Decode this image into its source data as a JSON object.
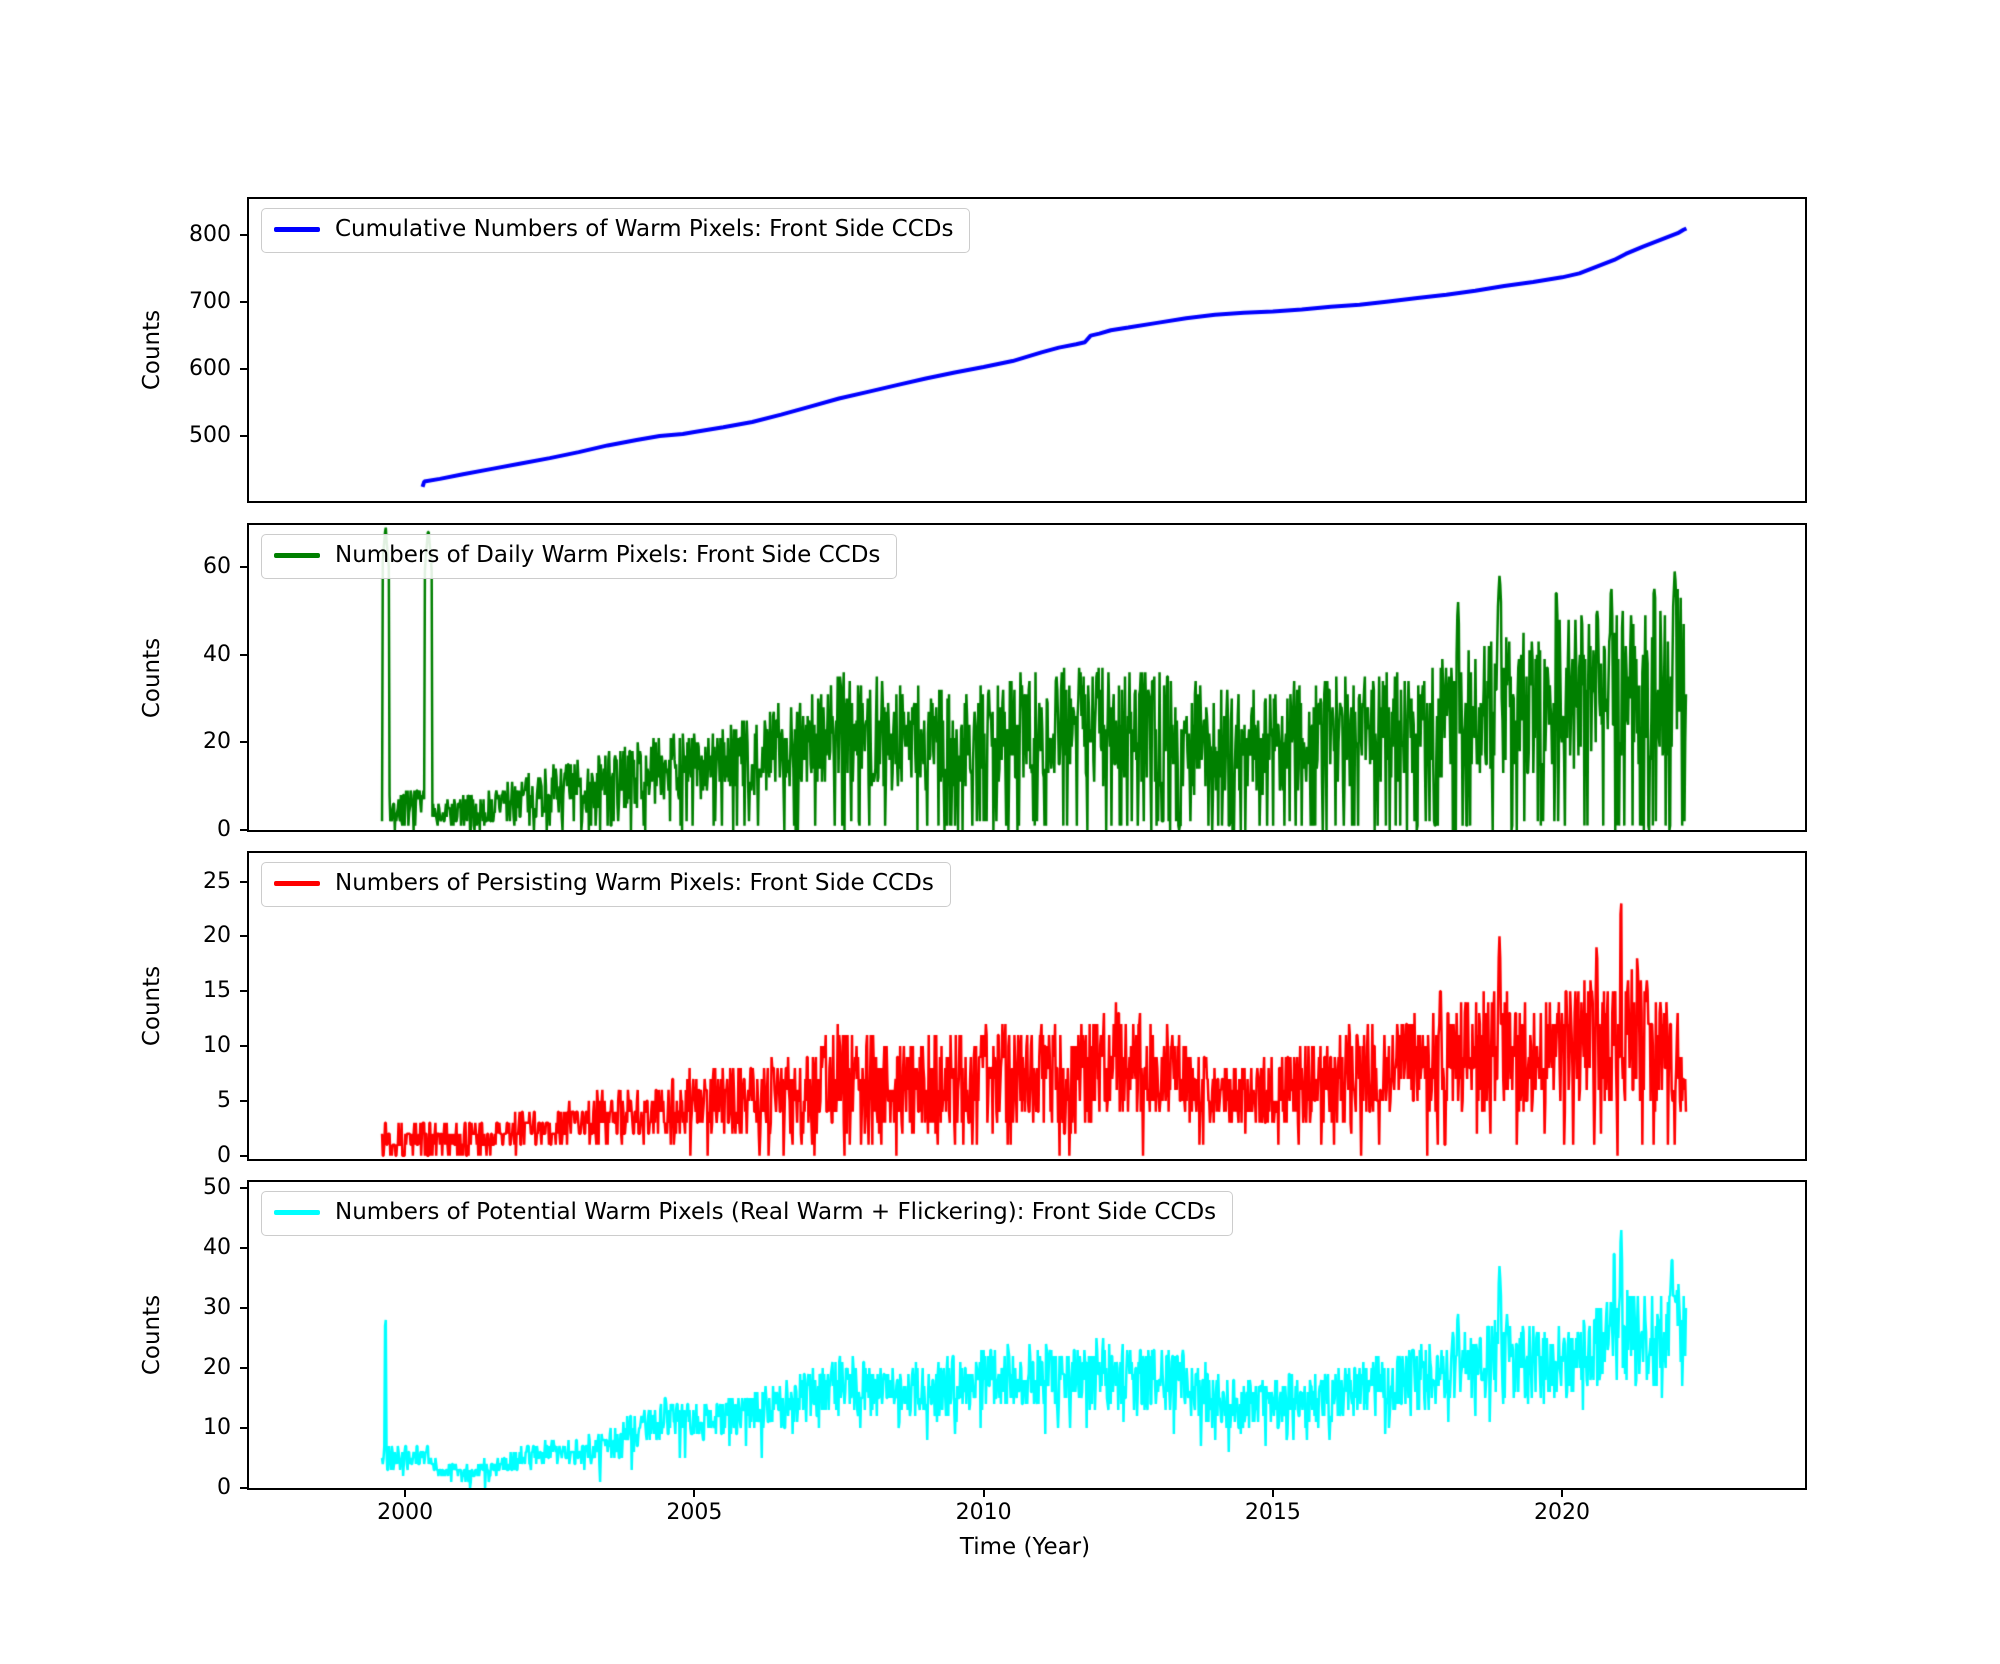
{
  "figure": {
    "background": "#ffffff"
  },
  "axis": {
    "xlabel": "Time (Year)",
    "xlim": [
      1997.3,
      2024.2
    ],
    "xticks": [
      2000,
      2005,
      2010,
      2015,
      2020
    ]
  },
  "chart_data": [
    {
      "type": "line",
      "legend": "Cumulative Numbers of Warm Pixels: Front Side CCDs",
      "legend_position": "upper left",
      "ylabel": "Counts",
      "color": "#0000ff",
      "linewidth": 4,
      "grid": false,
      "ylim": [
        403,
        854
      ],
      "yticks": [
        500,
        600,
        700,
        800
      ],
      "points": [
        [
          2000.3,
          424
        ],
        [
          2000.33,
          432
        ],
        [
          2000.6,
          436
        ],
        [
          2001.0,
          443
        ],
        [
          2001.5,
          451
        ],
        [
          2002.0,
          459
        ],
        [
          2002.5,
          467
        ],
        [
          2003.0,
          476
        ],
        [
          2003.5,
          486
        ],
        [
          2004.0,
          494
        ],
        [
          2004.4,
          500
        ],
        [
          2004.8,
          503
        ],
        [
          2005.0,
          506
        ],
        [
          2005.5,
          513
        ],
        [
          2006.0,
          521
        ],
        [
          2006.5,
          532
        ],
        [
          2007.0,
          544
        ],
        [
          2007.5,
          556
        ],
        [
          2008.0,
          566
        ],
        [
          2008.5,
          576
        ],
        [
          2009.0,
          586
        ],
        [
          2009.5,
          595
        ],
        [
          2010.0,
          603
        ],
        [
          2010.5,
          612
        ],
        [
          2011.0,
          625
        ],
        [
          2011.3,
          632
        ],
        [
          2011.6,
          637
        ],
        [
          2011.75,
          640
        ],
        [
          2011.85,
          650
        ],
        [
          2012.0,
          653
        ],
        [
          2012.2,
          658
        ],
        [
          2012.5,
          662
        ],
        [
          2013.0,
          669
        ],
        [
          2013.5,
          676
        ],
        [
          2014.0,
          681
        ],
        [
          2014.5,
          684
        ],
        [
          2015.0,
          686
        ],
        [
          2015.5,
          689
        ],
        [
          2016.0,
          693
        ],
        [
          2016.5,
          696
        ],
        [
          2017.0,
          701
        ],
        [
          2017.5,
          706
        ],
        [
          2018.0,
          711
        ],
        [
          2018.5,
          717
        ],
        [
          2019.0,
          724
        ],
        [
          2019.5,
          730
        ],
        [
          2020.0,
          737
        ],
        [
          2020.3,
          743
        ],
        [
          2020.6,
          753
        ],
        [
          2020.9,
          763
        ],
        [
          2021.1,
          772
        ],
        [
          2021.4,
          783
        ],
        [
          2021.7,
          793
        ],
        [
          2022.0,
          803
        ],
        [
          2022.1,
          808
        ],
        [
          2022.15,
          810
        ]
      ]
    },
    {
      "type": "line",
      "legend": "Numbers of Daily Warm Pixels: Front Side CCDs",
      "legend_position": "upper left",
      "ylabel": "Counts",
      "color": "#008000",
      "linewidth": 2.5,
      "grid": false,
      "ylim": [
        0,
        69.6
      ],
      "yticks": [
        0,
        20,
        40,
        60
      ],
      "seed": 7,
      "dt": 0.013,
      "drops": {
        "prob": 0.12,
        "mode": "abs",
        "base": 0,
        "range": 2
      },
      "envelope": [
        [
          1999.6,
          0,
          9
        ],
        [
          2000.0,
          1,
          9
        ],
        [
          2000.35,
          1,
          9
        ],
        [
          2000.55,
          0,
          7
        ],
        [
          2001.0,
          0,
          8
        ],
        [
          2001.5,
          1,
          10
        ],
        [
          2002.0,
          2,
          13
        ],
        [
          2002.5,
          3,
          15
        ],
        [
          2003.0,
          3,
          16
        ],
        [
          2003.5,
          4,
          18
        ],
        [
          2004.0,
          5,
          20
        ],
        [
          2004.5,
          7,
          22
        ],
        [
          2005.0,
          7,
          22
        ],
        [
          2005.5,
          8,
          24
        ],
        [
          2006.0,
          8,
          26
        ],
        [
          2006.5,
          9,
          30
        ],
        [
          2007.0,
          10,
          32
        ],
        [
          2007.5,
          11,
          36
        ],
        [
          2008.0,
          10,
          36
        ],
        [
          2008.5,
          9,
          34
        ],
        [
          2009.0,
          9,
          32
        ],
        [
          2009.5,
          9,
          33
        ],
        [
          2010.0,
          10,
          34
        ],
        [
          2010.5,
          11,
          36
        ],
        [
          2011.0,
          11,
          37
        ],
        [
          2011.5,
          12,
          38
        ],
        [
          2012.0,
          10,
          38
        ],
        [
          2012.5,
          10,
          37
        ],
        [
          2013.0,
          9,
          37
        ],
        [
          2013.5,
          8,
          36
        ],
        [
          2014.0,
          8,
          34
        ],
        [
          2014.5,
          8,
          33
        ],
        [
          2015.0,
          8,
          34
        ],
        [
          2015.5,
          9,
          35
        ],
        [
          2016.0,
          9,
          35
        ],
        [
          2016.5,
          10,
          36
        ],
        [
          2017.0,
          10,
          37
        ],
        [
          2017.5,
          11,
          38
        ],
        [
          2018.0,
          11,
          40
        ],
        [
          2018.5,
          12,
          42
        ],
        [
          2019.0,
          12,
          45
        ],
        [
          2019.5,
          13,
          46
        ],
        [
          2020.0,
          13,
          48
        ],
        [
          2020.5,
          14,
          50
        ],
        [
          2021.0,
          14,
          52
        ],
        [
          2021.5,
          15,
          55
        ],
        [
          2022.0,
          15,
          58
        ],
        [
          2022.15,
          14,
          50
        ]
      ],
      "spikes": [
        [
          1999.66,
          69.5,
          0.06
        ],
        [
          2000.4,
          69.5,
          0.06
        ],
        [
          2018.2,
          53,
          0.02
        ],
        [
          2018.92,
          59,
          0.03
        ],
        [
          2019.9,
          57,
          0.02
        ],
        [
          2020.85,
          57,
          0.02
        ],
        [
          2021.6,
          57,
          0.02
        ],
        [
          2021.95,
          60,
          0.03
        ]
      ]
    },
    {
      "type": "line",
      "legend": "Numbers of Persisting Warm Pixels: Front Side CCDs",
      "legend_position": "upper left",
      "ylabel": "Counts",
      "color": "#ff0000",
      "linewidth": 2.5,
      "grid": false,
      "ylim": [
        -0.3,
        27.6
      ],
      "yticks": [
        0,
        5,
        10,
        15,
        20,
        25
      ],
      "seed": 13,
      "dt": 0.013,
      "drops": {
        "prob": 0.05,
        "mode": "abs",
        "base": 0,
        "range": 2
      },
      "envelope": [
        [
          1999.6,
          0,
          4
        ],
        [
          2000.0,
          0,
          3
        ],
        [
          2000.5,
          0,
          3
        ],
        [
          2001.0,
          0,
          3
        ],
        [
          2001.5,
          0,
          3
        ],
        [
          2002.0,
          1,
          4
        ],
        [
          2002.5,
          1,
          4
        ],
        [
          2003.0,
          1,
          5
        ],
        [
          2003.5,
          1,
          6
        ],
        [
          2004.0,
          1,
          6
        ],
        [
          2004.5,
          2,
          7
        ],
        [
          2005.0,
          2,
          8
        ],
        [
          2005.5,
          2,
          8
        ],
        [
          2006.0,
          2,
          8
        ],
        [
          2006.5,
          2,
          9
        ],
        [
          2007.0,
          2,
          11
        ],
        [
          2007.5,
          3,
          12
        ],
        [
          2008.0,
          3,
          11
        ],
        [
          2008.5,
          2,
          10
        ],
        [
          2009.0,
          2,
          11
        ],
        [
          2009.5,
          3,
          11
        ],
        [
          2010.0,
          3,
          12
        ],
        [
          2010.5,
          3,
          12
        ],
        [
          2011.0,
          3,
          12
        ],
        [
          2011.5,
          2,
          12
        ],
        [
          2012.0,
          3,
          13
        ],
        [
          2012.5,
          3,
          14
        ],
        [
          2013.0,
          3,
          12
        ],
        [
          2013.5,
          3,
          11
        ],
        [
          2014.0,
          3,
          9
        ],
        [
          2014.5,
          3,
          8
        ],
        [
          2015.0,
          3,
          9
        ],
        [
          2015.5,
          3,
          10
        ],
        [
          2016.0,
          3,
          11
        ],
        [
          2016.5,
          3,
          12
        ],
        [
          2017.0,
          4,
          12
        ],
        [
          2017.5,
          4,
          13
        ],
        [
          2018.0,
          4,
          14
        ],
        [
          2018.5,
          4,
          15
        ],
        [
          2019.0,
          4,
          15
        ],
        [
          2019.5,
          4,
          14
        ],
        [
          2020.0,
          4,
          15
        ],
        [
          2020.5,
          5,
          17
        ],
        [
          2021.0,
          5,
          18
        ],
        [
          2021.5,
          4,
          16
        ],
        [
          2022.0,
          3,
          15
        ],
        [
          2022.15,
          2,
          8
        ]
      ],
      "spikes": [
        [
          2012.7,
          14,
          0.012
        ],
        [
          2017.9,
          16,
          0.015
        ],
        [
          2018.92,
          20,
          0.02
        ],
        [
          2020.6,
          19.5,
          0.015
        ],
        [
          2021.02,
          24,
          0.015
        ],
        [
          2021.3,
          19,
          0.012
        ]
      ]
    },
    {
      "type": "line",
      "legend": "Numbers of Potential Warm Pixels (Real Warm + Flickering): Front Side CCDs",
      "legend_position": "upper left",
      "ylabel": "Counts",
      "color": "#00ffff",
      "linewidth": 2.5,
      "grid": false,
      "ylim": [
        0,
        51
      ],
      "yticks": [
        0,
        10,
        20,
        30,
        40,
        50
      ],
      "seed": 21,
      "dt": 0.013,
      "drops": {
        "prob": 0.04,
        "mode": "rel",
        "base": 0,
        "range": 4
      },
      "envelope": [
        [
          1999.6,
          2,
          8
        ],
        [
          2000.0,
          3,
          7
        ],
        [
          2000.4,
          4,
          8
        ],
        [
          2000.6,
          1,
          4
        ],
        [
          2001.0,
          1,
          4
        ],
        [
          2001.5,
          2,
          5
        ],
        [
          2002.0,
          3,
          7
        ],
        [
          2002.5,
          4,
          8
        ],
        [
          2003.0,
          4,
          8
        ],
        [
          2003.5,
          4,
          10
        ],
        [
          2004.0,
          6,
          13
        ],
        [
          2004.5,
          9,
          15
        ],
        [
          2005.0,
          8,
          14
        ],
        [
          2005.5,
          8,
          15
        ],
        [
          2006.0,
          9,
          16
        ],
        [
          2006.5,
          10,
          18
        ],
        [
          2007.0,
          11,
          20
        ],
        [
          2007.5,
          13,
          23
        ],
        [
          2008.0,
          12,
          21
        ],
        [
          2008.5,
          12,
          20
        ],
        [
          2009.0,
          12,
          21
        ],
        [
          2009.5,
          12,
          22
        ],
        [
          2010.0,
          13,
          23
        ],
        [
          2010.5,
          14,
          24
        ],
        [
          2011.0,
          13,
          24
        ],
        [
          2011.5,
          13,
          23
        ],
        [
          2012.0,
          13,
          25
        ],
        [
          2012.5,
          13,
          24
        ],
        [
          2013.0,
          13,
          24
        ],
        [
          2013.5,
          12,
          23
        ],
        [
          2014.0,
          10,
          20
        ],
        [
          2014.5,
          9,
          18
        ],
        [
          2015.0,
          10,
          19
        ],
        [
          2015.5,
          11,
          20
        ],
        [
          2016.0,
          11,
          20
        ],
        [
          2016.5,
          12,
          21
        ],
        [
          2017.0,
          12,
          22
        ],
        [
          2017.5,
          13,
          24
        ],
        [
          2018.0,
          14,
          26
        ],
        [
          2018.5,
          15,
          28
        ],
        [
          2019.0,
          15,
          29
        ],
        [
          2019.5,
          14,
          27
        ],
        [
          2020.0,
          15,
          28
        ],
        [
          2020.5,
          17,
          31
        ],
        [
          2021.0,
          18,
          34
        ],
        [
          2021.5,
          16,
          32
        ],
        [
          2022.0,
          18,
          36
        ],
        [
          2022.15,
          22,
          30
        ]
      ],
      "spikes": [
        [
          1999.66,
          29,
          0.015
        ],
        [
          2018.2,
          30,
          0.02
        ],
        [
          2018.92,
          37,
          0.025
        ],
        [
          2020.9,
          42,
          0.015
        ],
        [
          2021.02,
          44,
          0.02
        ],
        [
          2021.9,
          40,
          0.02
        ]
      ]
    }
  ]
}
